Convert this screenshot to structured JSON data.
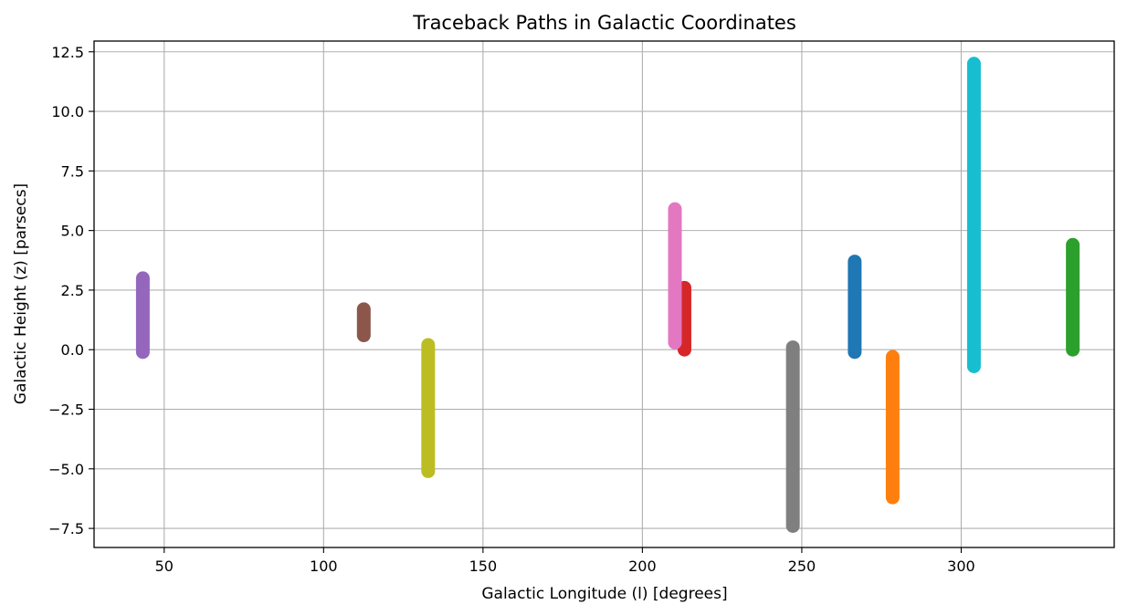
{
  "chart_data": {
    "type": "scatter",
    "title": "Traceback Paths in Galactic Coordinates",
    "xlabel": "Galactic Longitude (l) [degrees]",
    "ylabel": "Galactic Height (z) [parsecs]",
    "xlim": [
      28,
      348
    ],
    "ylim": [
      -8.3,
      12.95
    ],
    "xticks": [
      50,
      100,
      150,
      200,
      250,
      300
    ],
    "xtick_labels": [
      "50",
      "100",
      "150",
      "200",
      "250",
      "300"
    ],
    "yticks": [
      -7.5,
      -5.0,
      -2.5,
      0.0,
      2.5,
      5.0,
      7.5,
      10.0,
      12.5
    ],
    "ytick_labels": [
      "−7.5",
      "−5.0",
      "−2.5",
      "0.0",
      "2.5",
      "5.0",
      "7.5",
      "10.0",
      "12.5"
    ],
    "grid": true,
    "series": [
      {
        "color": "#9467bd",
        "x": 43.3,
        "z_min": -0.1,
        "z_max": 3.0
      },
      {
        "color": "#8c564b",
        "x": 112.6,
        "z_min": 0.6,
        "z_max": 1.7
      },
      {
        "color": "#bcbd22",
        "x": 132.8,
        "z_min": -5.1,
        "z_max": 0.2
      },
      {
        "color": "#d62728",
        "x": 213.2,
        "z_min": 0.0,
        "z_max": 2.6
      },
      {
        "color": "#e377c2",
        "x": 210.2,
        "z_min": 0.3,
        "z_max": 5.9
      },
      {
        "color": "#7f7f7f",
        "x": 247.2,
        "z_min": -7.4,
        "z_max": 0.1
      },
      {
        "color": "#1f77b4",
        "x": 266.6,
        "z_min": -0.1,
        "z_max": 3.7
      },
      {
        "color": "#ff7f0e",
        "x": 278.5,
        "z_min": -6.2,
        "z_max": -0.3
      },
      {
        "color": "#17becf",
        "x": 304.0,
        "z_min": -0.7,
        "z_max": 12.0
      },
      {
        "color": "#2ca02c",
        "x": 335.0,
        "z_min": 0.0,
        "z_max": 4.4
      }
    ]
  }
}
